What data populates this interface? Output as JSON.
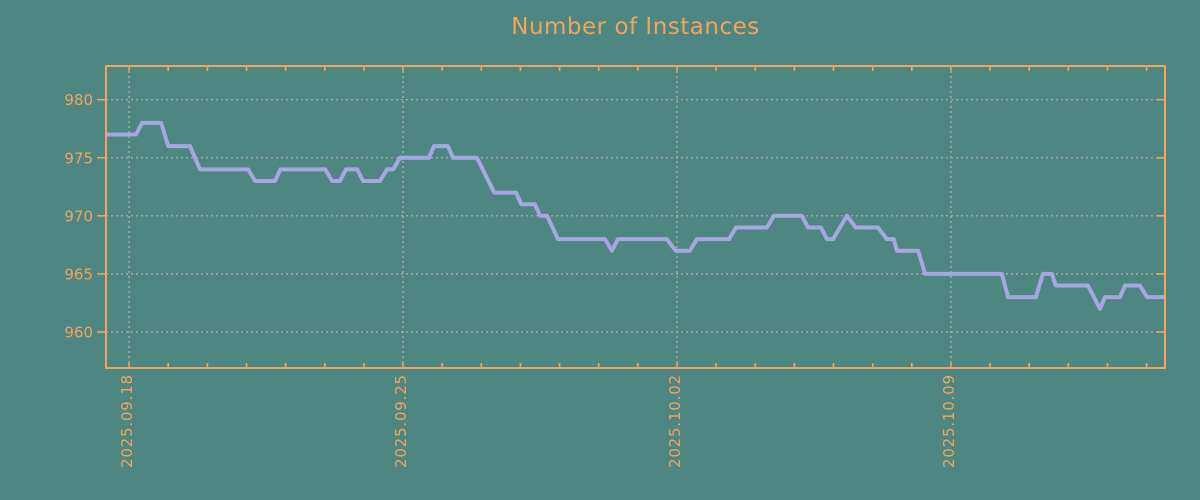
{
  "colors": {
    "background": "#4e8681",
    "axis_and_text": "#f2a45f",
    "grid": "#b4b4ac",
    "line": "#a6a6e2"
  },
  "chart_data": {
    "type": "line",
    "title": "Number of Instances",
    "xlabel": "",
    "ylabel": "",
    "legend": "none",
    "grid": "dashed vertical lines at weekly major ticks, dashed horizontal lines at y ticks",
    "x_axis": {
      "kind": "time",
      "unit": "days relative to 2025.09.18",
      "xlim": [
        -0.59,
        26.47
      ],
      "major_ticks": [
        {
          "day": 0,
          "label": "2025.09.18"
        },
        {
          "day": 7,
          "label": "2025.09.25"
        },
        {
          "day": 14,
          "label": "2025.10.02"
        },
        {
          "day": 21,
          "label": "2025.10.09"
        }
      ],
      "minor_tick_interval_days": 1
    },
    "y_axis": {
      "ylim": [
        956.9,
        982.9
      ],
      "ticks": [
        980,
        975,
        970,
        965,
        960
      ]
    },
    "series": [
      {
        "name": "Number of Instances",
        "color": "#a6a6e2",
        "points": [
          [
            -0.59,
            977
          ],
          [
            0.18,
            977
          ],
          [
            0.33,
            978
          ],
          [
            0.82,
            978
          ],
          [
            1.0,
            976
          ],
          [
            1.56,
            976
          ],
          [
            1.81,
            974
          ],
          [
            3.04,
            974
          ],
          [
            3.22,
            973
          ],
          [
            3.73,
            973
          ],
          [
            3.86,
            974
          ],
          [
            5.01,
            974
          ],
          [
            5.19,
            973
          ],
          [
            5.39,
            973
          ],
          [
            5.54,
            974
          ],
          [
            5.83,
            974
          ],
          [
            5.98,
            973
          ],
          [
            6.41,
            973
          ],
          [
            6.59,
            974
          ],
          [
            6.75,
            974
          ],
          [
            6.92,
            975
          ],
          [
            7.66,
            975
          ],
          [
            7.79,
            976
          ],
          [
            8.15,
            976
          ],
          [
            8.28,
            975
          ],
          [
            8.89,
            975
          ],
          [
            9.33,
            972
          ],
          [
            9.89,
            972
          ],
          [
            10.02,
            971
          ],
          [
            10.37,
            971
          ],
          [
            10.5,
            970
          ],
          [
            10.68,
            970
          ],
          [
            10.96,
            968
          ],
          [
            12.16,
            968
          ],
          [
            12.34,
            967
          ],
          [
            12.49,
            968
          ],
          [
            13.74,
            968
          ],
          [
            13.97,
            967
          ],
          [
            14.33,
            967
          ],
          [
            14.51,
            968
          ],
          [
            15.33,
            968
          ],
          [
            15.51,
            969
          ],
          [
            16.3,
            969
          ],
          [
            16.48,
            970
          ],
          [
            17.19,
            970
          ],
          [
            17.35,
            969
          ],
          [
            17.68,
            969
          ],
          [
            17.83,
            968
          ],
          [
            17.99,
            968
          ],
          [
            18.34,
            970
          ],
          [
            18.57,
            969
          ],
          [
            19.14,
            969
          ],
          [
            19.36,
            968
          ],
          [
            19.54,
            968
          ],
          [
            19.62,
            967
          ],
          [
            20.16,
            967
          ],
          [
            20.34,
            965
          ],
          [
            22.3,
            965
          ],
          [
            22.46,
            963
          ],
          [
            23.17,
            963
          ],
          [
            23.35,
            965
          ],
          [
            23.58,
            965
          ],
          [
            23.68,
            964
          ],
          [
            24.5,
            964
          ],
          [
            24.81,
            962
          ],
          [
            24.94,
            963
          ],
          [
            25.32,
            963
          ],
          [
            25.45,
            964
          ],
          [
            25.83,
            964
          ],
          [
            26.01,
            963
          ],
          [
            26.47,
            963
          ]
        ]
      }
    ]
  }
}
